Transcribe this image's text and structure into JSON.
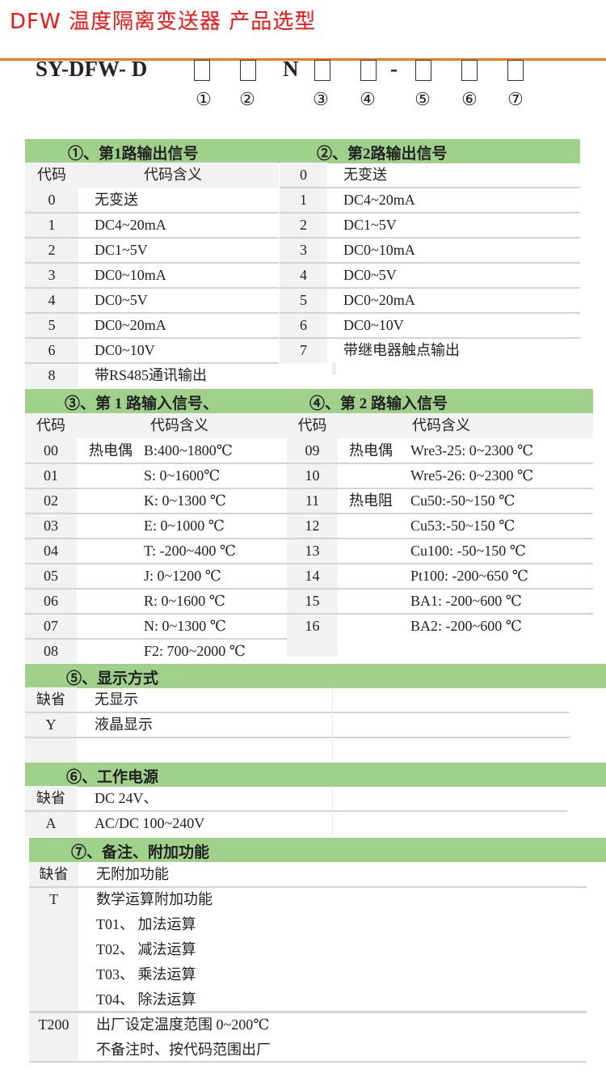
{
  "title": "DFW 温度隔离变送器  产品选型",
  "model": {
    "prefix": "SY-DFW- D",
    "n": "N",
    "dash": "-",
    "markers": [
      "①",
      "②",
      "③",
      "④",
      "⑤",
      "⑥",
      "⑦"
    ]
  },
  "colors": {
    "title": "#ff1010",
    "rule": "#f07a1c",
    "section_bar": "#9fd18b",
    "code_column": "#f2f2f2"
  },
  "s1": {
    "title": "①、第1路输出信号",
    "header_code": "代码",
    "header_meaning": "代码含义",
    "rows": [
      {
        "code": "0",
        "meaning": "无变送"
      },
      {
        "code": "1",
        "meaning": "DC4~20mA"
      },
      {
        "code": "2",
        "meaning": "DC1~5V"
      },
      {
        "code": "3",
        "meaning": "DC0~10mA"
      },
      {
        "code": "4",
        "meaning": "DC0~5V"
      },
      {
        "code": "5",
        "meaning": "DC0~20mA"
      },
      {
        "code": "6",
        "meaning": "DC0~10V"
      },
      {
        "code": "8",
        "meaning": "带RS485通讯输出"
      }
    ]
  },
  "s2": {
    "title": "②、第2路输出信号",
    "rows": [
      {
        "code": "0",
        "meaning": "无变送"
      },
      {
        "code": "1",
        "meaning": "DC4~20mA"
      },
      {
        "code": "2",
        "meaning": "DC1~5V"
      },
      {
        "code": "3",
        "meaning": "DC0~10mA"
      },
      {
        "code": "4",
        "meaning": "DC0~5V"
      },
      {
        "code": "5",
        "meaning": "DC0~20mA"
      },
      {
        "code": "6",
        "meaning": "DC0~10V"
      },
      {
        "code": "7",
        "meaning": "带继电器触点输出"
      }
    ]
  },
  "s3": {
    "title": "③、第 1 路输入信号、",
    "header_code": "代码",
    "header_meaning": "代码含义",
    "rows": [
      {
        "code": "00",
        "group": "热电偶",
        "meaning": "B:400~1800℃"
      },
      {
        "code": "01",
        "group": "",
        "meaning": "S: 0~1600℃"
      },
      {
        "code": "02",
        "group": "",
        "meaning": "K: 0~1300 ℃"
      },
      {
        "code": "03",
        "group": "",
        "meaning": "E: 0~1000 ℃"
      },
      {
        "code": "04",
        "group": "",
        "meaning": "T: -200~400 ℃"
      },
      {
        "code": "05",
        "group": "",
        "meaning": "J: 0~1200 ℃"
      },
      {
        "code": "06",
        "group": "",
        "meaning": "R: 0~1600 ℃"
      },
      {
        "code": "07",
        "group": "",
        "meaning": "N: 0~1300 ℃"
      },
      {
        "code": "08",
        "group": "",
        "meaning": "F2:  700~2000 ℃"
      }
    ]
  },
  "s4": {
    "title": "④、第 2 路输入信号",
    "header_code": "代码",
    "header_meaning": "代码含义",
    "rows": [
      {
        "code": "09",
        "group": "热电偶",
        "meaning": "Wre3-25: 0~2300 ℃"
      },
      {
        "code": "10",
        "group": "",
        "meaning": "Wre5-26: 0~2300 ℃"
      },
      {
        "code": "11",
        "group": "热电阻",
        "meaning": "Cu50:-50~150 ℃"
      },
      {
        "code": "12",
        "group": "",
        "meaning": "Cu53:-50~150 ℃"
      },
      {
        "code": "13",
        "group": "",
        "meaning": "Cu100: -50~150 ℃"
      },
      {
        "code": "14",
        "group": "",
        "meaning": "Pt100: -200~650 ℃"
      },
      {
        "code": "15",
        "group": "",
        "meaning": "BA1: -200~600 ℃"
      },
      {
        "code": "16",
        "group": "",
        "meaning": "BA2: -200~600 ℃"
      }
    ]
  },
  "s5": {
    "title": "⑤、显示方式",
    "rows": [
      {
        "code": "缺省",
        "meaning": "无显示"
      },
      {
        "code": "Y",
        "meaning": "液晶显示"
      },
      {
        "code": "",
        "meaning": ""
      }
    ]
  },
  "s6": {
    "title": "⑥、工作电源",
    "rows": [
      {
        "code": "缺省",
        "meaning": "DC 24V、"
      },
      {
        "code": "A",
        "meaning": "AC/DC 100~240V"
      }
    ]
  },
  "s7": {
    "title": "⑦、备注、附加功能",
    "rows": [
      {
        "code": "缺省",
        "meaning": "无附加功能"
      },
      {
        "code": "T",
        "meaning": "数学运算附加功能"
      },
      {
        "code": "",
        "meaning": "T01、 加法运算"
      },
      {
        "code": "",
        "meaning": "T02、 减法运算"
      },
      {
        "code": "",
        "meaning": "T03、 乘法运算"
      },
      {
        "code": "",
        "meaning": "T04、 除法运算"
      },
      {
        "code": "T200",
        "meaning": "出厂设定温度范围 0~200℃"
      },
      {
        "code": "",
        "meaning": "不备注时、按代码范围出厂"
      }
    ]
  }
}
